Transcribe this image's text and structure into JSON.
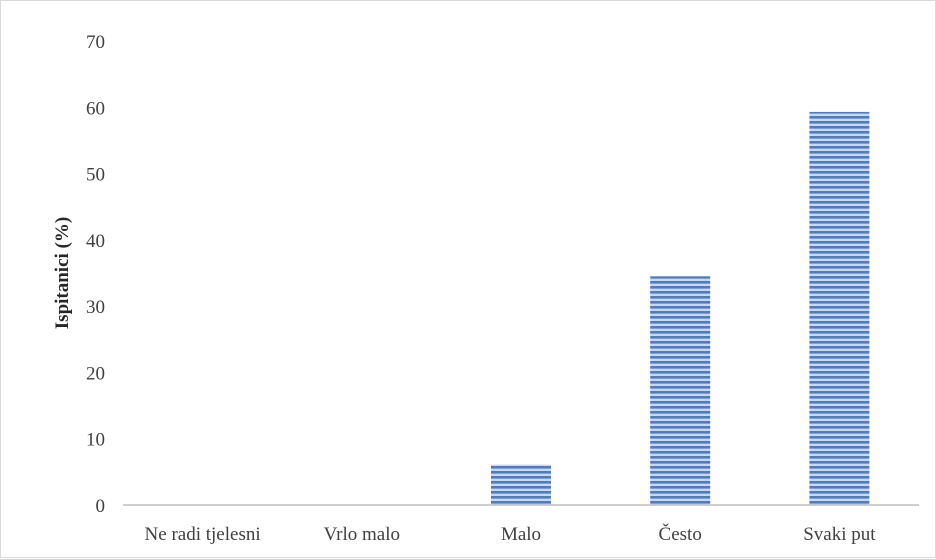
{
  "chart_data": {
    "type": "bar",
    "categories": [
      "Ne radi tjelesni",
      "Vrlo malo",
      "Malo",
      "Često",
      "Svaki put"
    ],
    "values": [
      0,
      0,
      6.1,
      34.5,
      59.3
    ],
    "ylabel": "Ispitanici (%)",
    "xlabel": "",
    "ylim": [
      0,
      70
    ],
    "yticks": [
      0,
      10,
      20,
      30,
      40,
      50,
      60,
      70
    ],
    "grid": false,
    "bar_color": "#4f7bbf",
    "bar_pattern": "horizontal-stripes"
  }
}
